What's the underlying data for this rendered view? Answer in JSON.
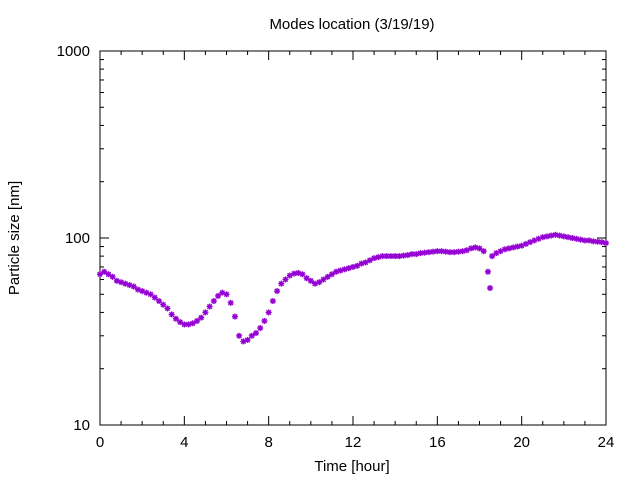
{
  "chart_data": {
    "type": "scatter",
    "title": "Modes location (3/19/19)",
    "xlabel": "Time [hour]",
    "ylabel": "Particle size [nm]",
    "xlim": [
      0,
      24
    ],
    "ylim": [
      10,
      1000
    ],
    "yscale": "log",
    "grid": false,
    "legend": "none",
    "x_ticks": [
      0,
      4,
      8,
      12,
      16,
      20,
      24
    ],
    "x_tick_labels": [
      "0",
      "4",
      "8",
      "12",
      "16",
      "20",
      "24"
    ],
    "y_ticks": [
      10,
      100,
      1000
    ],
    "y_tick_labels": [
      "10",
      "100",
      "1000"
    ],
    "marker_color": "#9400d3",
    "series": [
      {
        "x": [
          0.0,
          0.2,
          0.4,
          0.6,
          0.8,
          1.0,
          1.2,
          1.4,
          1.6,
          1.8,
          2.0,
          2.2,
          2.4,
          2.6,
          2.8,
          3.0,
          3.2,
          3.4,
          3.6,
          3.8,
          4.0,
          4.2,
          4.4,
          4.6,
          4.8,
          5.0,
          5.2,
          5.4,
          5.6,
          5.8,
          6.0,
          6.2,
          6.4,
          6.6,
          6.8,
          7.0,
          7.2,
          7.4,
          7.6,
          7.8,
          8.0,
          8.2,
          8.4,
          8.6,
          8.8,
          9.0,
          9.2,
          9.4,
          9.6,
          9.8,
          10.0,
          10.2,
          10.4,
          10.6,
          10.8,
          11.0,
          11.2,
          11.4,
          11.6,
          11.8,
          12.0,
          12.2,
          12.4,
          12.6,
          12.8,
          13.0,
          13.2,
          13.4,
          13.6,
          13.8,
          14.0,
          14.2,
          14.4,
          14.6,
          14.8,
          15.0,
          15.2,
          15.4,
          15.6,
          15.8,
          16.0,
          16.2,
          16.4,
          16.6,
          16.8,
          17.0,
          17.2,
          17.4,
          17.6,
          17.8,
          18.0,
          18.2,
          18.4,
          18.5,
          18.6,
          18.8,
          19.0,
          19.2,
          19.4,
          19.6,
          19.8,
          20.0,
          20.2,
          20.4,
          20.6,
          20.8,
          21.0,
          21.2,
          21.4,
          21.6,
          21.8,
          22.0,
          22.2,
          22.4,
          22.6,
          22.8,
          23.0,
          23.2,
          23.4,
          23.6,
          23.8,
          24.0
        ],
        "y": [
          64,
          66,
          64,
          62,
          59,
          58,
          57,
          56,
          55,
          53,
          52,
          51,
          50,
          48,
          46,
          44,
          42,
          39,
          37,
          35.5,
          34.5,
          34.5,
          35,
          36,
          37.5,
          40,
          43,
          46,
          49,
          51,
          50,
          45,
          38,
          30,
          28,
          28.5,
          30,
          31,
          33,
          36,
          40,
          46,
          52,
          57,
          60,
          63,
          64.5,
          65,
          64,
          61,
          59,
          57,
          58,
          60,
          62,
          64,
          66,
          67,
          68,
          69,
          70,
          71,
          73,
          74,
          76,
          78,
          79,
          80,
          80,
          80,
          80,
          80,
          80.5,
          81,
          82,
          82,
          83,
          83.5,
          84,
          84.5,
          85,
          85,
          84.5,
          84,
          84,
          84.5,
          85,
          86,
          88,
          89,
          88,
          85,
          66,
          54,
          80,
          83,
          85,
          87,
          88,
          89,
          90,
          91,
          93,
          95,
          97,
          99,
          101,
          102,
          103,
          104,
          103,
          102,
          101,
          100,
          99,
          98,
          97,
          97,
          96,
          95.5,
          95,
          94
        ]
      }
    ]
  }
}
